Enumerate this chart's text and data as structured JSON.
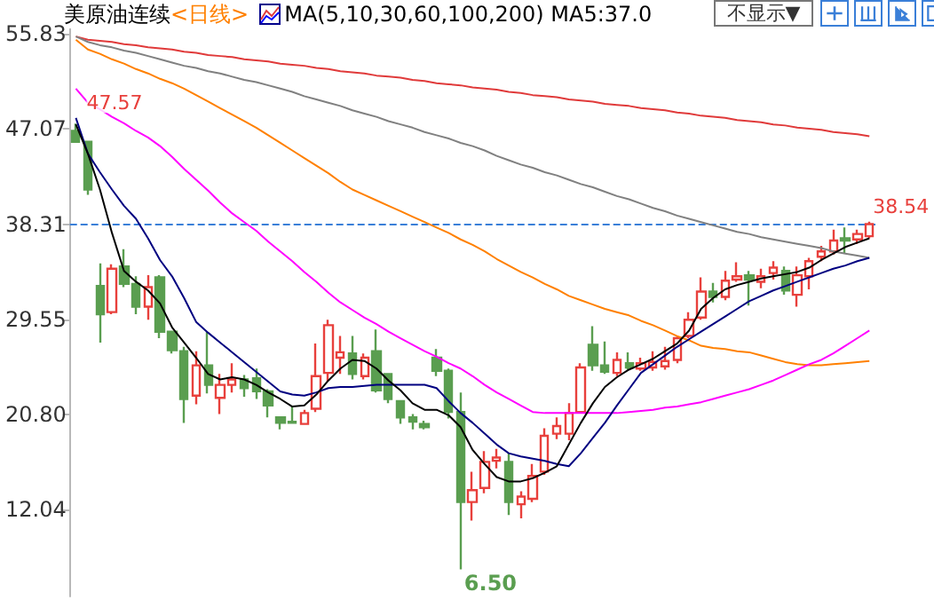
{
  "chart_data": {
    "type": "candlestick",
    "title": "美原油连续",
    "subtitle": "<日线>",
    "annotations": [
      "MA(5,10,30,60,100,200) MA5:37.0",
      "不显示▼",
      "47.57",
      "6.50",
      "38.54"
    ],
    "categories": [
      null,
      null,
      null,
      null,
      null,
      null,
      null,
      null,
      null,
      null,
      null,
      null,
      null,
      null,
      null,
      null,
      null,
      null,
      null,
      null,
      null,
      null,
      null,
      null,
      null,
      null,
      null,
      null,
      null,
      null,
      null,
      null,
      null,
      null,
      null,
      null,
      null,
      null,
      null,
      null,
      null,
      null,
      null,
      null,
      null,
      null,
      null,
      null,
      null,
      null,
      null,
      null,
      null,
      null,
      null,
      null,
      null,
      null,
      null,
      null,
      null,
      null,
      null,
      null,
      null,
      null,
      null
    ],
    "series": [
      {
        "type": "line",
        "color": "#e03a3a",
        "values": [
          55.6,
          55.3,
          55.2,
          55.1,
          54.9,
          54.8,
          54.6,
          54.5,
          54.4,
          54.2,
          54.1,
          53.9,
          53.8,
          53.7,
          53.5,
          53.4,
          53.3,
          53.1,
          53.0,
          52.9,
          52.7,
          52.6,
          52.4,
          52.3,
          52.2,
          52.0,
          51.9,
          51.8,
          51.6,
          51.5,
          51.3,
          51.2,
          51.1,
          50.9,
          50.8,
          50.7,
          50.5,
          50.4,
          50.2,
          50.1,
          50.0,
          49.8,
          49.7,
          49.6,
          49.4,
          49.3,
          49.2,
          49.0,
          48.9,
          48.8,
          48.6,
          48.5,
          48.3,
          48.2,
          48.1,
          47.9,
          47.8,
          47.7,
          47.5,
          47.4,
          47.2,
          47.1,
          47.0,
          46.8,
          46.7,
          46.6,
          46.4
        ]
      },
      {
        "type": "line",
        "color": "#808080",
        "values": [
          55.6,
          55.1,
          54.8,
          54.6,
          54.3,
          54.1,
          53.8,
          53.5,
          53.2,
          52.9,
          52.7,
          52.4,
          52.2,
          51.9,
          51.6,
          51.4,
          51.1,
          50.8,
          50.5,
          50.1,
          49.8,
          49.5,
          49.2,
          48.8,
          48.5,
          48.2,
          47.8,
          47.5,
          47.2,
          46.8,
          46.5,
          46.2,
          45.8,
          45.5,
          45.1,
          44.6,
          44.2,
          43.8,
          43.5,
          43.1,
          42.8,
          42.4,
          42.0,
          41.7,
          41.3,
          40.9,
          40.6,
          40.2,
          39.8,
          39.5,
          39.1,
          38.8,
          38.5,
          38.2,
          37.9,
          37.6,
          37.4,
          37.1,
          36.9,
          36.7,
          36.5,
          36.3,
          36.1,
          35.8,
          35.6,
          35.4,
          35.2
        ]
      },
      {
        "type": "line",
        "color": "#ff8000",
        "values": [
          55.3,
          54.4,
          54.0,
          53.5,
          53.1,
          52.6,
          52.2,
          51.7,
          51.3,
          50.8,
          50.2,
          49.6,
          49.0,
          48.4,
          47.8,
          47.2,
          46.5,
          45.8,
          45.1,
          44.4,
          43.7,
          43.0,
          42.2,
          41.5,
          41.0,
          40.5,
          40.0,
          39.5,
          39.0,
          38.5,
          38.0,
          37.5,
          36.9,
          36.4,
          35.8,
          35.1,
          34.5,
          33.9,
          33.4,
          32.8,
          32.3,
          31.7,
          31.3,
          30.9,
          30.5,
          30.2,
          29.9,
          29.4,
          29.0,
          28.5,
          28.0,
          27.6,
          27.1,
          26.9,
          26.8,
          26.6,
          26.5,
          26.2,
          25.9,
          25.6,
          25.4,
          25.3,
          25.3,
          25.4,
          25.5,
          25.6,
          25.7
        ]
      },
      {
        "type": "line",
        "color": "#ff00ff",
        "values": [
          50.8,
          49.5,
          48.9,
          48.2,
          47.6,
          46.9,
          46.3,
          45.5,
          44.5,
          43.4,
          42.4,
          41.4,
          40.3,
          39.3,
          38.5,
          37.7,
          36.7,
          35.8,
          34.9,
          33.9,
          33.0,
          32.0,
          31.1,
          30.4,
          29.7,
          29.1,
          28.4,
          27.8,
          27.2,
          26.6,
          26.1,
          25.5,
          25.0,
          24.3,
          23.5,
          22.8,
          22.2,
          21.6,
          21.0,
          20.9,
          20.9,
          20.9,
          20.9,
          20.9,
          20.9,
          20.9,
          21.0,
          21.1,
          21.2,
          21.4,
          21.5,
          21.7,
          21.9,
          22.2,
          22.5,
          22.8,
          23.1,
          23.5,
          23.9,
          24.4,
          24.9,
          25.4,
          25.8,
          26.4,
          27.1,
          27.8,
          28.5
        ]
      },
      {
        "type": "line",
        "color": "#000080",
        "values": [
          48.1,
          44.8,
          43.1,
          41.5,
          40.0,
          38.8,
          37.0,
          35.0,
          33.5,
          31.5,
          29.3,
          28.3,
          27.4,
          26.5,
          25.6,
          24.7,
          23.8,
          22.9,
          22.6,
          22.5,
          22.8,
          23.2,
          23.3,
          23.3,
          23.4,
          23.5,
          23.5,
          23.5,
          23.5,
          23.5,
          23.2,
          22.0,
          20.9,
          20.0,
          19.0,
          18.0,
          17.2,
          16.9,
          16.7,
          16.5,
          16.2,
          16.0,
          17.2,
          18.6,
          20.0,
          21.6,
          23.1,
          24.6,
          25.4,
          26.2,
          27.0,
          27.7,
          28.4,
          29.1,
          29.8,
          30.5,
          31.2,
          31.7,
          32.2,
          32.6,
          33.0,
          33.4,
          33.8,
          34.2,
          34.5,
          34.9,
          35.2
        ]
      },
      {
        "type": "line",
        "color": "#000000",
        "values": [
          47.5,
          44.8,
          41.5,
          37.5,
          34.0,
          33.0,
          32.2,
          31.0,
          28.8,
          27.4,
          26.0,
          24.5,
          24.0,
          24.2,
          24.0,
          23.5,
          22.8,
          22.2,
          21.5,
          21.6,
          22.6,
          23.9,
          25.0,
          25.8,
          25.7,
          25.0,
          23.9,
          23.0,
          21.8,
          21.2,
          21.2,
          20.7,
          19.6,
          17.5,
          16.2,
          15.0,
          14.6,
          14.6,
          14.9,
          15.4,
          16.0,
          18.0,
          20.0,
          21.8,
          23.3,
          24.2,
          24.9,
          25.4,
          25.9,
          26.6,
          27.3,
          28.5,
          30.5,
          31.5,
          32.3,
          32.7,
          33.0,
          33.3,
          33.5,
          33.7,
          33.9,
          34.3,
          35.0,
          35.6,
          36.2,
          36.6,
          37.0
        ]
      },
      {
        "colors": [
          "#5a9e50",
          "#5a9e50",
          "#5a9e50",
          "#e8403c",
          "#5a9e50",
          "#5a9e50",
          "#e8403c",
          "#5a9e50",
          "#5a9e50",
          "#5a9e50",
          "#e8403c",
          "#5a9e50",
          "#e8403c",
          "#e8403c",
          "#5a9e50",
          "#5a9e50",
          "#5a9e50",
          "#5a9e50",
          "#5a9e50",
          "#e8403c",
          "#e8403c",
          "#e8403c",
          "#e8403c",
          "#5a9e50",
          "#e8403c",
          "#5a9e50",
          "#5a9e50",
          "#5a9e50",
          "#5a9e50",
          "#5a9e50",
          "#5a9e50",
          "#5a9e50",
          "#5a9e50",
          "#e8403c",
          "#e8403c",
          "#e8403c",
          "#5a9e50",
          "#e8403c",
          "#e8403c",
          "#e8403c",
          "#e8403c",
          "#e8403c",
          "#e8403c",
          "#5a9e50",
          "#5a9e50",
          "#e8403c",
          "#5a9e50",
          "#e8403c",
          "#e8403c",
          "#e8403c",
          "#e8403c",
          "#e8403c",
          "#e8403c",
          "#5a9e50",
          "#e8403c",
          "#e8403c",
          "#5a9e50",
          "#e8403c",
          "#e8403c",
          "#5a9e50",
          "#e8403c",
          "#e8403c",
          "#e8403c",
          "#e8403c",
          "#5a9e50",
          "#e8403c",
          "#e8403c"
        ],
        "ohlc": [
          [
            46.9,
            47.57,
            45.8,
            45.9
          ],
          [
            45.9,
            45.9,
            41.0,
            41.5
          ],
          [
            32.6,
            34.7,
            27.4,
            30.0
          ],
          [
            30.2,
            34.6,
            30.0,
            34.2
          ],
          [
            34.4,
            36.0,
            32.5,
            32.8
          ],
          [
            32.8,
            33.5,
            30.0,
            30.7
          ],
          [
            30.7,
            33.6,
            29.5,
            32.5
          ],
          [
            33.4,
            33.6,
            27.8,
            28.4
          ],
          [
            28.4,
            28.4,
            26.4,
            26.7
          ],
          [
            26.6,
            27.0,
            20.0,
            22.2
          ],
          [
            22.5,
            26.6,
            21.7,
            25.3
          ],
          [
            25.3,
            28.4,
            22.7,
            23.5
          ],
          [
            22.3,
            24.5,
            20.8,
            23.5
          ],
          [
            23.5,
            25.5,
            22.8,
            24.0
          ],
          [
            24.0,
            24.4,
            22.4,
            23.2
          ],
          [
            24.1,
            25.0,
            22.2,
            22.9
          ],
          [
            22.9,
            23.1,
            20.5,
            21.6
          ],
          [
            20.5,
            20.6,
            19.4,
            20.0
          ],
          [
            20.1,
            21.5,
            19.9,
            20.0
          ],
          [
            19.9,
            21.2,
            19.9,
            20.9
          ],
          [
            21.3,
            27.3,
            21.0,
            24.3
          ],
          [
            24.6,
            29.5,
            23.8,
            29.0
          ],
          [
            26.0,
            28.0,
            24.5,
            26.5
          ],
          [
            26.4,
            28.0,
            24.0,
            24.5
          ],
          [
            24.3,
            26.4,
            24.0,
            26.0
          ],
          [
            26.6,
            28.6,
            22.8,
            23.0
          ],
          [
            24.5,
            24.6,
            21.8,
            22.2
          ],
          [
            22.0,
            22.0,
            19.9,
            20.5
          ],
          [
            20.5,
            20.8,
            19.4,
            20.1
          ],
          [
            19.9,
            20.2,
            19.4,
            19.6
          ],
          [
            26.0,
            26.8,
            24.3,
            24.8
          ],
          [
            24.8,
            25.0,
            20.4,
            21.0
          ],
          [
            21.0,
            22.8,
            6.5,
            12.7
          ],
          [
            12.7,
            15.5,
            11.0,
            13.8
          ],
          [
            14.0,
            17.4,
            13.5,
            16.4
          ],
          [
            16.5,
            17.6,
            15.8,
            16.8
          ],
          [
            16.4,
            17.2,
            11.5,
            12.7
          ],
          [
            12.5,
            13.7,
            11.2,
            13.2
          ],
          [
            13.0,
            16.2,
            12.7,
            15.1
          ],
          [
            15.5,
            19.5,
            15.2,
            18.8
          ],
          [
            19.0,
            20.5,
            18.5,
            19.7
          ],
          [
            19.0,
            21.8,
            18.4,
            20.9
          ],
          [
            21.0,
            25.5,
            20.9,
            25.1
          ],
          [
            27.2,
            28.9,
            24.8,
            25.3
          ],
          [
            25.3,
            27.5,
            24.5,
            24.7
          ],
          [
            24.6,
            26.5,
            24.3,
            25.8
          ],
          [
            25.5,
            26.5,
            24.9,
            25.1
          ],
          [
            25.0,
            26.0,
            24.8,
            25.5
          ],
          [
            25.1,
            26.6,
            24.8,
            25.6
          ],
          [
            25.2,
            27.0,
            24.9,
            25.7
          ],
          [
            25.8,
            28.0,
            25.5,
            27.8
          ],
          [
            28.0,
            30.2,
            27.8,
            29.5
          ],
          [
            29.7,
            33.4,
            29.5,
            32.1
          ],
          [
            32.1,
            32.9,
            31.1,
            31.6
          ],
          [
            31.6,
            34.0,
            31.3,
            33.1
          ],
          [
            33.2,
            34.8,
            33.0,
            33.5
          ],
          [
            33.6,
            34.0,
            30.8,
            33.2
          ],
          [
            33.0,
            34.2,
            32.4,
            33.5
          ],
          [
            33.8,
            34.9,
            33.2,
            34.3
          ],
          [
            34.0,
            34.4,
            31.8,
            32.2
          ],
          [
            31.8,
            34.4,
            30.7,
            33.6
          ],
          [
            33.5,
            35.2,
            32.3,
            34.9
          ],
          [
            35.3,
            36.3,
            34.9,
            35.8
          ],
          [
            35.8,
            37.8,
            35.5,
            36.8
          ],
          [
            37.0,
            38.0,
            35.6,
            36.8
          ],
          [
            36.9,
            37.8,
            36.5,
            37.4
          ],
          [
            37.2,
            38.54,
            37.0,
            38.31
          ]
        ]
      }
    ],
    "ylim": [
      4,
      57
    ],
    "yticks": [
      12.04,
      {
        "value": 20.8,
        "label": "20.80"
      },
      29.55,
      38.31,
      47.07,
      55.83
    ],
    "ref_lines": [
      {
        "axis": "y",
        "value": 38.31,
        "color": "#3a7fd8",
        "line_style": "dashed"
      }
    ],
    "grid": false,
    "tick_labels": "y",
    "line_style": "solid"
  }
}
